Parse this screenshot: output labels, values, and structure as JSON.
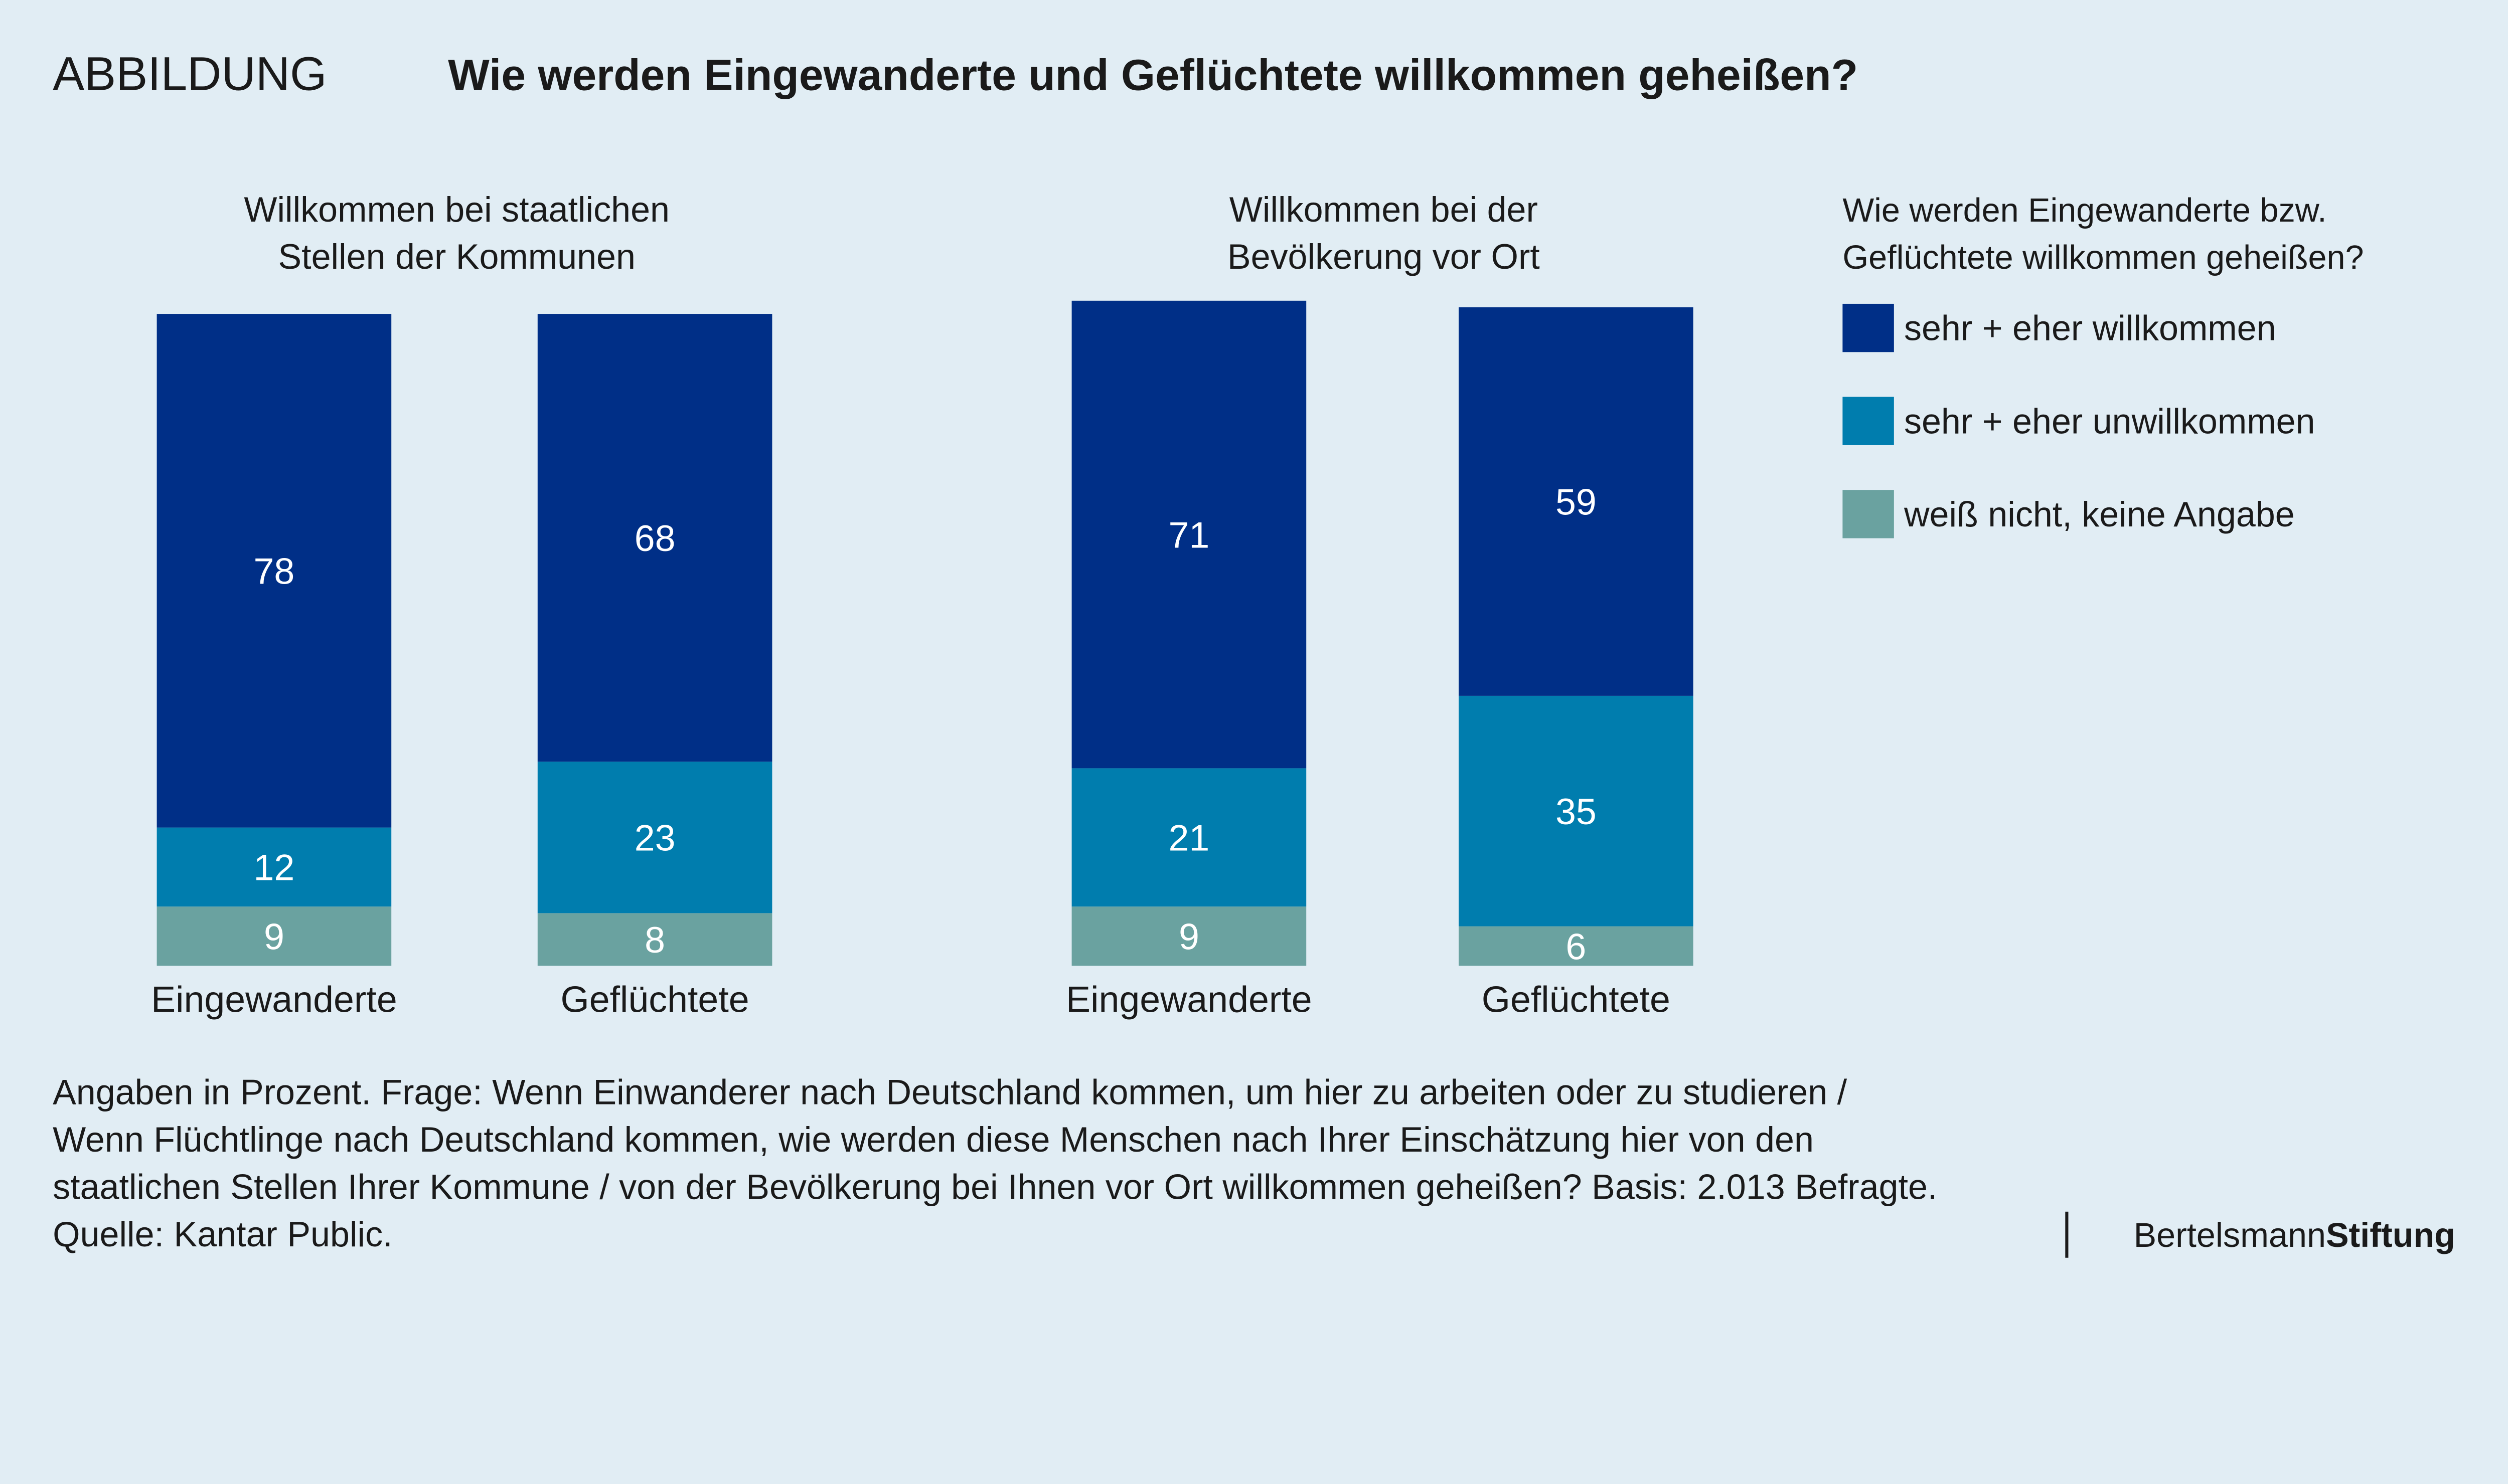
{
  "header": {
    "label": "ABBILDUNG",
    "title": "Wie werden Eingewanderte und Geflüchtete willkommen geheißen?"
  },
  "colors": {
    "background": "#e1edf4",
    "willkommen": "#002f87",
    "unwillkommen": "#007dae",
    "weiss_nicht": "#6aa2a0"
  },
  "chart_data": {
    "type": "bar",
    "stacked": true,
    "unit": "Prozent",
    "groups": [
      {
        "title": [
          "Willkommen bei staatlichen",
          "Stellen der Kommunen"
        ],
        "categories": [
          "Eingewanderte",
          "Geflüchtete"
        ]
      },
      {
        "title": [
          "Willkommen bei der",
          "Bevölkerung vor Ort"
        ],
        "categories": [
          "Eingewanderte",
          "Geflüchtete"
        ]
      }
    ],
    "series": [
      {
        "name": "sehr + eher willkommen",
        "values": [
          [
            78,
            68
          ],
          [
            71,
            59
          ]
        ]
      },
      {
        "name": "sehr + eher unwillkommen",
        "values": [
          [
            12,
            23
          ],
          [
            21,
            35
          ]
        ]
      },
      {
        "name": "weiß nicht, keine Angabe",
        "values": [
          [
            9,
            8
          ],
          [
            9,
            6
          ]
        ]
      }
    ],
    "legend": {
      "title": [
        "Wie werden Eingewanderte bzw.",
        "Geflüchtete willkommen geheißen?"
      ],
      "placement": "right"
    }
  },
  "footnote": [
    "Angaben in Prozent. Frage: Wenn Einwanderer nach Deutschland kommen, um hier zu arbeiten oder zu studieren /",
    "Wenn Flüchtlinge nach Deutschland kommen, wie werden diese Menschen nach Ihrer Einschätzung hier von den",
    "staatlichen Stellen Ihrer Kommune / von der Bevölkerung bei Ihnen vor Ort willkommen geheißen? Basis: 2.013 Befragte.",
    "Quelle: Kantar Public."
  ],
  "logo": {
    "text_regular": "Bertelsmann",
    "text_bold": "Stiftung"
  }
}
